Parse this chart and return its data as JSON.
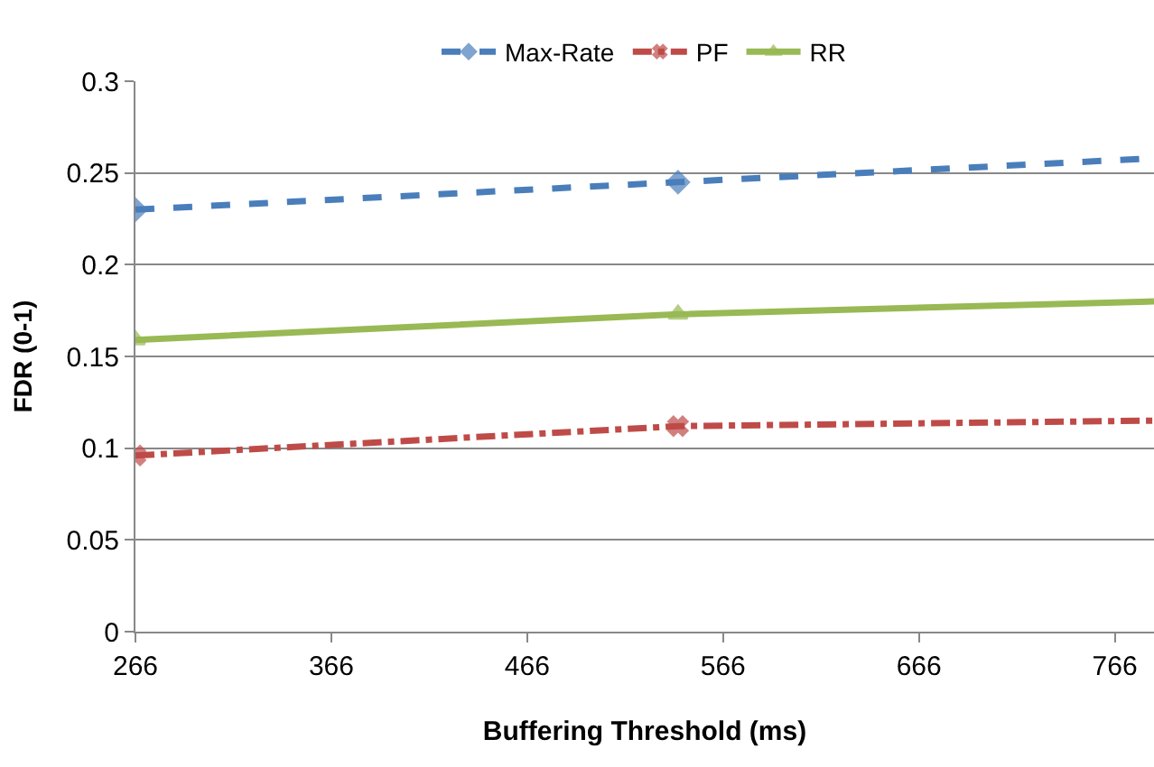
{
  "chart_data": {
    "type": "line",
    "xlabel": "Buffering Threshold (ms)",
    "ylabel": "FDR (0-1)",
    "x": [
      266,
      543,
      786
    ],
    "series": [
      {
        "name": "Max-Rate",
        "color": "#4a7ebb",
        "values": [
          0.23,
          0.245,
          0.258
        ],
        "marker": "diamond",
        "line_style": "dashed"
      },
      {
        "name": "PF",
        "color": "#be4b48",
        "values": [
          0.096,
          0.112,
          0.115
        ],
        "marker": "cross",
        "line_style": "dashdot"
      },
      {
        "name": "RR",
        "color": "#98b954",
        "values": [
          0.159,
          0.173,
          0.18
        ],
        "marker": "triangle",
        "line_style": "solid"
      }
    ],
    "xlim": [
      266,
      786
    ],
    "xticks": [
      266,
      366,
      466,
      566,
      666,
      766
    ],
    "ylim": [
      0,
      0.3
    ],
    "yticks": [
      0,
      0.05,
      0.1,
      0.15,
      0.2,
      0.25,
      0.3
    ],
    "grid": "y",
    "legend": "top"
  }
}
